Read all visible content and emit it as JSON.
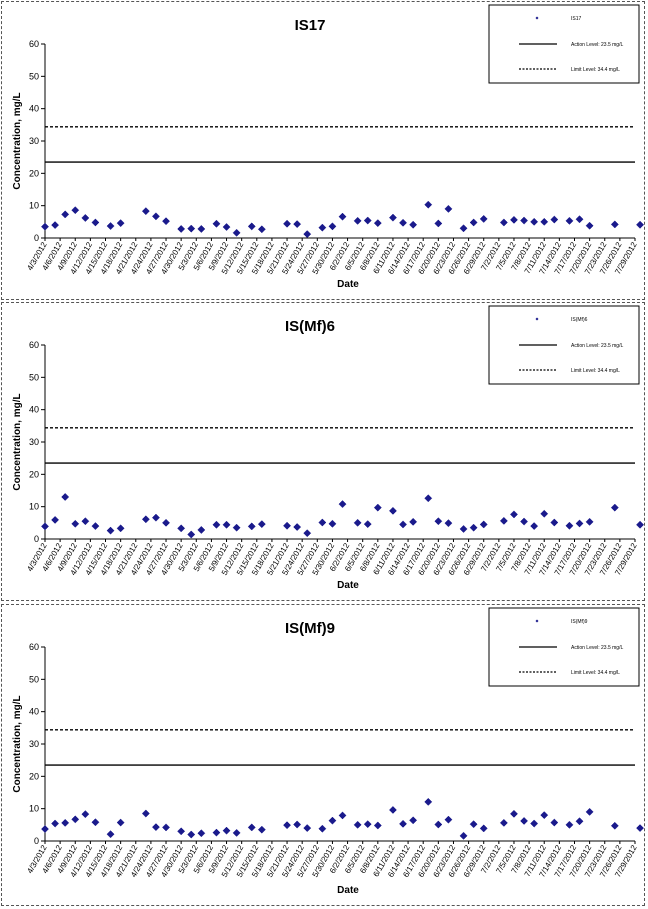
{
  "chart_data": [
    {
      "type": "scatter",
      "title": "IS17",
      "xlabel": "Date",
      "ylabel": "Concentration, mg/L",
      "ylim": [
        0,
        60
      ],
      "yticks": [
        0,
        10,
        20,
        30,
        40,
        50,
        60
      ],
      "xlim": [
        "4/3/2012",
        "7/29/2012"
      ],
      "xtick_labels": [
        "4/3/2012",
        "4/6/2012",
        "4/9/2012",
        "4/12/2012",
        "4/15/2012",
        "4/18/2012",
        "4/21/2012",
        "4/24/2012",
        "4/27/2012",
        "4/30/2012",
        "5/3/2012",
        "5/6/2012",
        "5/9/2012",
        "5/12/2012",
        "5/15/2012",
        "5/18/2012",
        "5/21/2012",
        "5/24/2012",
        "5/27/2012",
        "5/30/2012",
        "6/2/2012",
        "6/5/2012",
        "6/8/2012",
        "6/11/2012",
        "6/14/2012",
        "6/17/2012",
        "6/20/2012",
        "6/23/2012",
        "6/26/2012",
        "6/29/2012",
        "7/2/2012",
        "7/5/2012",
        "7/8/2012",
        "7/11/2012",
        "7/14/2012",
        "7/17/2012",
        "7/20/2012",
        "7/23/2012",
        "7/26/2012",
        "7/29/2012"
      ],
      "legend_position": "top-right",
      "series": [
        {
          "name": "IS17",
          "marker": "diamond",
          "color": "#1a1a8c",
          "points": [
            [
              "4/3/2012",
              3.5
            ],
            [
              "4/5/2012",
              4.0
            ],
            [
              "4/7/2012",
              7.3
            ],
            [
              "4/9/2012",
              8.6
            ],
            [
              "4/11/2012",
              6.2
            ],
            [
              "4/13/2012",
              4.8
            ],
            [
              "4/16/2012",
              3.7
            ],
            [
              "4/18/2012",
              4.6
            ],
            [
              "4/23/2012",
              8.3
            ],
            [
              "4/25/2012",
              6.7
            ],
            [
              "4/27/2012",
              5.2
            ],
            [
              "4/30/2012",
              2.8
            ],
            [
              "5/2/2012",
              2.9
            ],
            [
              "5/4/2012",
              2.8
            ],
            [
              "5/7/2012",
              4.4
            ],
            [
              "5/9/2012",
              3.4
            ],
            [
              "5/11/2012",
              1.6
            ],
            [
              "5/14/2012",
              3.6
            ],
            [
              "5/16/2012",
              2.7
            ],
            [
              "5/21/2012",
              4.4
            ],
            [
              "5/23/2012",
              4.3
            ],
            [
              "5/25/2012",
              1.2
            ],
            [
              "5/28/2012",
              3.2
            ],
            [
              "5/30/2012",
              3.6
            ],
            [
              "6/1/2012",
              6.6
            ],
            [
              "6/4/2012",
              5.3
            ],
            [
              "6/6/2012",
              5.4
            ],
            [
              "6/8/2012",
              4.6
            ],
            [
              "6/11/2012",
              6.3
            ],
            [
              "6/13/2012",
              4.7
            ],
            [
              "6/15/2012",
              4.1
            ],
            [
              "6/18/2012",
              10.3
            ],
            [
              "6/20/2012",
              4.5
            ],
            [
              "6/22/2012",
              9.0
            ],
            [
              "6/25/2012",
              3.0
            ],
            [
              "6/27/2012",
              4.8
            ],
            [
              "6/29/2012",
              5.9
            ],
            [
              "7/3/2012",
              4.8
            ],
            [
              "7/5/2012",
              5.6
            ],
            [
              "7/7/2012",
              5.4
            ],
            [
              "7/9/2012",
              5.0
            ],
            [
              "7/11/2012",
              5.0
            ],
            [
              "7/13/2012",
              5.7
            ],
            [
              "7/16/2012",
              5.3
            ],
            [
              "7/18/2012",
              5.8
            ],
            [
              "7/20/2012",
              3.8
            ],
            [
              "7/25/2012",
              4.2
            ],
            [
              "7/30/2012",
              4.1
            ]
          ]
        },
        {
          "name": "Action Level: 23.5 mg/L",
          "type": "hline",
          "value": 23.5,
          "style": "solid"
        },
        {
          "name": "Limit Level: 34.4 mg/L",
          "type": "hline",
          "value": 34.4,
          "style": "dashed"
        }
      ]
    },
    {
      "type": "scatter",
      "title": "IS(Mf)6",
      "xlabel": "Date",
      "ylabel": "Concentration, mg/L",
      "ylim": [
        0,
        60
      ],
      "yticks": [
        0,
        10,
        20,
        30,
        40,
        50,
        60
      ],
      "xlim": [
        "4/3/2012",
        "7/29/2012"
      ],
      "xtick_labels": [
        "4/3/2012",
        "4/6/2012",
        "4/9/2012",
        "4/12/2012",
        "4/15/2012",
        "4/18/2012",
        "4/21/2012",
        "4/24/2012",
        "4/27/2012",
        "4/30/2012",
        "5/3/2012",
        "5/6/2012",
        "5/9/2012",
        "5/12/2012",
        "5/15/2012",
        "5/18/2012",
        "5/21/2012",
        "5/24/2012",
        "5/27/2012",
        "5/30/2012",
        "6/2/2012",
        "6/5/2012",
        "6/8/2012",
        "6/11/2012",
        "6/14/2012",
        "6/17/2012",
        "6/20/2012",
        "6/23/2012",
        "6/26/2012",
        "6/29/2012",
        "7/2/2012",
        "7/5/2012",
        "7/8/2012",
        "7/11/2012",
        "7/14/2012",
        "7/17/2012",
        "7/20/2012",
        "7/23/2012",
        "7/26/2012",
        "7/29/2012"
      ],
      "legend_position": "top-right",
      "series": [
        {
          "name": "IS(Mf)6",
          "marker": "diamond",
          "color": "#1a1a8c",
          "points": [
            [
              "4/3/2012",
              3.9
            ],
            [
              "4/5/2012",
              5.9
            ],
            [
              "4/7/2012",
              13.0
            ],
            [
              "4/9/2012",
              4.7
            ],
            [
              "4/11/2012",
              5.5
            ],
            [
              "4/13/2012",
              4.0
            ],
            [
              "4/16/2012",
              2.6
            ],
            [
              "4/18/2012",
              3.3
            ],
            [
              "4/23/2012",
              6.1
            ],
            [
              "4/25/2012",
              6.6
            ],
            [
              "4/27/2012",
              5.0
            ],
            [
              "4/30/2012",
              3.3
            ],
            [
              "5/2/2012",
              1.4
            ],
            [
              "5/4/2012",
              2.8
            ],
            [
              "5/7/2012",
              4.4
            ],
            [
              "5/9/2012",
              4.4
            ],
            [
              "5/11/2012",
              3.5
            ],
            [
              "5/14/2012",
              3.9
            ],
            [
              "5/16/2012",
              4.6
            ],
            [
              "5/21/2012",
              4.1
            ],
            [
              "5/23/2012",
              3.7
            ],
            [
              "5/25/2012",
              1.8
            ],
            [
              "5/28/2012",
              5.1
            ],
            [
              "5/30/2012",
              4.7
            ],
            [
              "6/1/2012",
              10.8
            ],
            [
              "6/4/2012",
              5.0
            ],
            [
              "6/6/2012",
              4.6
            ],
            [
              "6/8/2012",
              9.7
            ],
            [
              "6/11/2012",
              8.7
            ],
            [
              "6/13/2012",
              4.5
            ],
            [
              "6/15/2012",
              5.3
            ],
            [
              "6/18/2012",
              12.6
            ],
            [
              "6/20/2012",
              5.5
            ],
            [
              "6/22/2012",
              4.9
            ],
            [
              "6/25/2012",
              3.1
            ],
            [
              "6/27/2012",
              3.5
            ],
            [
              "6/29/2012",
              4.5
            ],
            [
              "7/3/2012",
              5.6
            ],
            [
              "7/5/2012",
              7.6
            ],
            [
              "7/7/2012",
              5.4
            ],
            [
              "7/9/2012",
              4.0
            ],
            [
              "7/11/2012",
              7.8
            ],
            [
              "7/13/2012",
              5.1
            ],
            [
              "7/16/2012",
              4.1
            ],
            [
              "7/18/2012",
              4.8
            ],
            [
              "7/20/2012",
              5.3
            ],
            [
              "7/25/2012",
              9.7
            ],
            [
              "7/30/2012",
              4.4
            ]
          ]
        },
        {
          "name": "Action Level: 23.5 mg/L",
          "type": "hline",
          "value": 23.5,
          "style": "solid"
        },
        {
          "name": "Limit Level: 34.4 mg/L",
          "type": "hline",
          "value": 34.4,
          "style": "dashed"
        }
      ]
    },
    {
      "type": "scatter",
      "title": "IS(Mf)9",
      "xlabel": "Date",
      "ylabel": "Concentration, mg/L",
      "ylim": [
        0,
        60
      ],
      "yticks": [
        0,
        10,
        20,
        30,
        40,
        50,
        60
      ],
      "xlim": [
        "4/3/2012",
        "7/29/2012"
      ],
      "xtick_labels": [
        "4/3/2012",
        "4/6/2012",
        "4/9/2012",
        "4/12/2012",
        "4/15/2012",
        "4/18/2012",
        "4/21/2012",
        "4/24/2012",
        "4/27/2012",
        "4/30/2012",
        "5/3/2012",
        "5/6/2012",
        "5/9/2012",
        "5/12/2012",
        "5/15/2012",
        "5/18/2012",
        "5/21/2012",
        "5/24/2012",
        "5/27/2012",
        "5/30/2012",
        "6/2/2012",
        "6/5/2012",
        "6/8/2012",
        "6/11/2012",
        "6/14/2012",
        "6/17/2012",
        "6/20/2012",
        "6/23/2012",
        "6/26/2012",
        "6/29/2012",
        "7/2/2012",
        "7/5/2012",
        "7/8/2012",
        "7/11/2012",
        "7/14/2012",
        "7/17/2012",
        "7/20/2012",
        "7/23/2012",
        "7/26/2012",
        "7/29/2012"
      ],
      "legend_position": "top-right",
      "series": [
        {
          "name": "IS(Mf)9",
          "marker": "diamond",
          "color": "#1a1a8c",
          "points": [
            [
              "4/3/2012",
              3.7
            ],
            [
              "4/5/2012",
              5.4
            ],
            [
              "4/7/2012",
              5.6
            ],
            [
              "4/9/2012",
              6.7
            ],
            [
              "4/11/2012",
              8.3
            ],
            [
              "4/13/2012",
              5.8
            ],
            [
              "4/16/2012",
              2.1
            ],
            [
              "4/18/2012",
              5.7
            ],
            [
              "4/23/2012",
              8.5
            ],
            [
              "4/25/2012",
              4.3
            ],
            [
              "4/27/2012",
              4.2
            ],
            [
              "4/30/2012",
              3.0
            ],
            [
              "5/2/2012",
              2.0
            ],
            [
              "5/4/2012",
              2.4
            ],
            [
              "5/7/2012",
              2.6
            ],
            [
              "5/9/2012",
              3.2
            ],
            [
              "5/11/2012",
              2.5
            ],
            [
              "5/14/2012",
              4.2
            ],
            [
              "5/16/2012",
              3.5
            ],
            [
              "5/21/2012",
              4.9
            ],
            [
              "5/23/2012",
              5.1
            ],
            [
              "5/25/2012",
              4.0
            ],
            [
              "5/28/2012",
              3.8
            ],
            [
              "5/30/2012",
              6.3
            ],
            [
              "6/1/2012",
              7.9
            ],
            [
              "6/4/2012",
              5.0
            ],
            [
              "6/6/2012",
              5.2
            ],
            [
              "6/8/2012",
              4.8
            ],
            [
              "6/11/2012",
              9.6
            ],
            [
              "6/13/2012",
              5.3
            ],
            [
              "6/15/2012",
              6.4
            ],
            [
              "6/18/2012",
              12.1
            ],
            [
              "6/20/2012",
              5.1
            ],
            [
              "6/22/2012",
              6.6
            ],
            [
              "6/25/2012",
              1.6
            ],
            [
              "6/27/2012",
              5.2
            ],
            [
              "6/29/2012",
              3.9
            ],
            [
              "7/3/2012",
              5.6
            ],
            [
              "7/5/2012",
              8.4
            ],
            [
              "7/7/2012",
              6.2
            ],
            [
              "7/9/2012",
              5.4
            ],
            [
              "7/11/2012",
              8.0
            ],
            [
              "7/13/2012",
              5.7
            ],
            [
              "7/16/2012",
              5.0
            ],
            [
              "7/18/2012",
              6.1
            ],
            [
              "7/20/2012",
              9.0
            ],
            [
              "7/25/2012",
              4.7
            ],
            [
              "7/30/2012",
              4.0
            ]
          ]
        },
        {
          "name": "Action Level: 23.5 mg/L",
          "type": "hline",
          "value": 23.5,
          "style": "solid"
        },
        {
          "name": "Limit Level: 34.4 mg/L",
          "type": "hline",
          "value": 34.4,
          "style": "dashed"
        }
      ]
    }
  ]
}
